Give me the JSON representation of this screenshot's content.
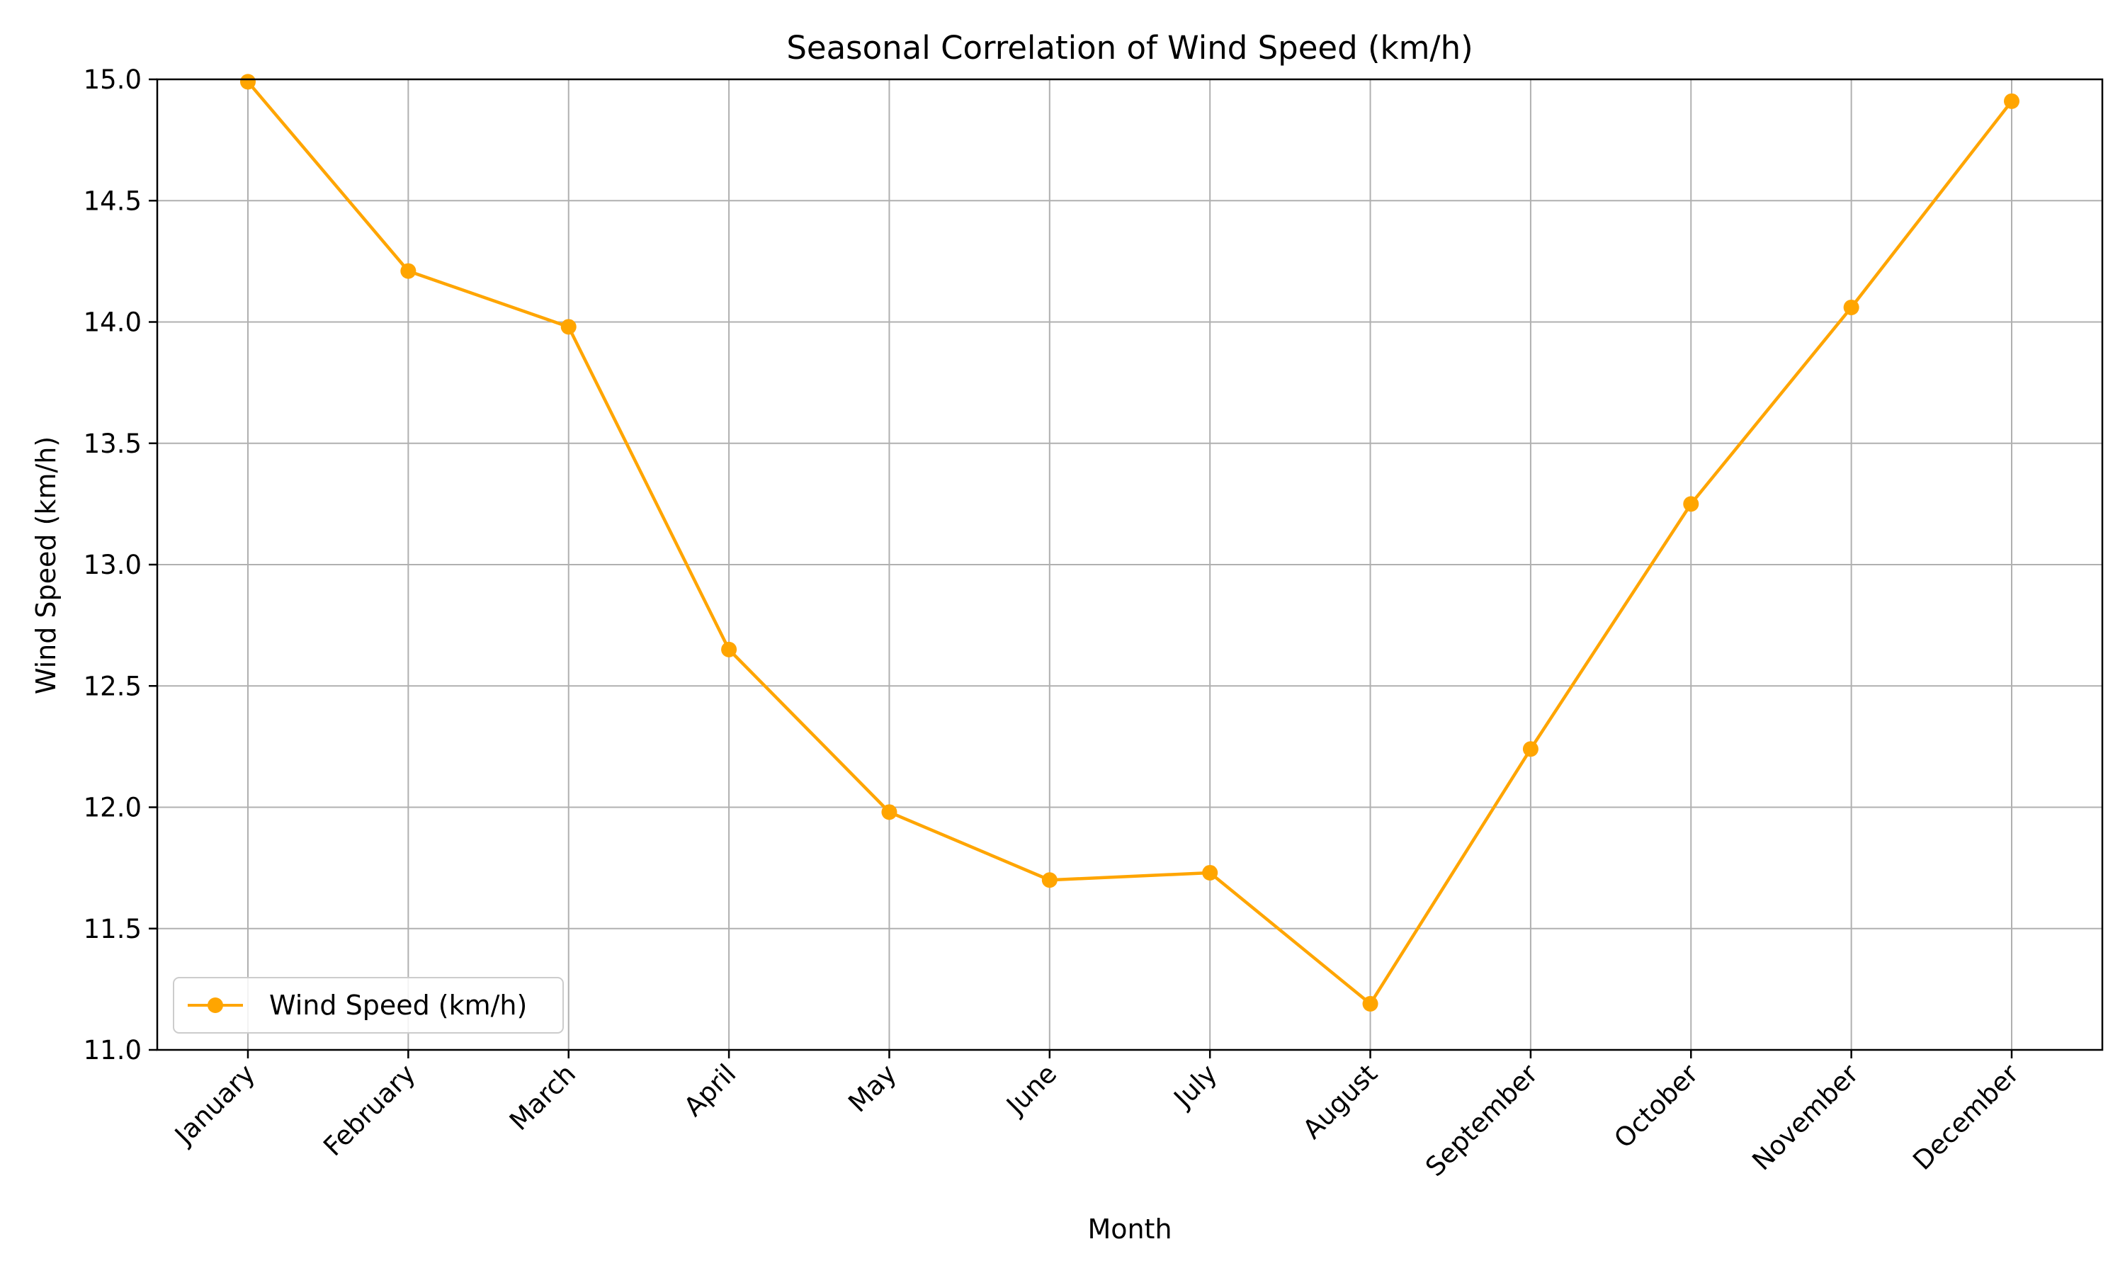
{
  "chart_data": {
    "type": "line",
    "title": "Seasonal Correlation of Wind Speed (km/h)",
    "xlabel": "Month",
    "ylabel": "Wind Speed (km/h)",
    "categories": [
      "January",
      "February",
      "March",
      "April",
      "May",
      "June",
      "July",
      "August",
      "September",
      "October",
      "November",
      "December"
    ],
    "series": [
      {
        "name": "Wind Speed (km/h)",
        "color": "#FFA500",
        "marker": "circle",
        "values": [
          14.99,
          14.21,
          13.98,
          12.65,
          11.98,
          11.7,
          11.73,
          11.19,
          12.24,
          13.25,
          14.06,
          14.91
        ]
      }
    ],
    "ylim": [
      11.0,
      15.0
    ],
    "yticks": [
      {
        "value": 11.0,
        "label": "11.0"
      },
      {
        "value": 11.5,
        "label": "11.5"
      },
      {
        "value": 12.0,
        "label": "12.0"
      },
      {
        "value": 12.5,
        "label": "12.5"
      },
      {
        "value": 13.0,
        "label": "13.0"
      },
      {
        "value": 13.5,
        "label": "13.5"
      },
      {
        "value": 14.0,
        "label": "14.0"
      },
      {
        "value": 14.5,
        "label": "14.5"
      },
      {
        "value": 15.0,
        "label": "15.0"
      }
    ],
    "grid": true,
    "grid_color": "#b0b0b0",
    "legend_position": "lower-left",
    "xtick_rotation": 45
  }
}
